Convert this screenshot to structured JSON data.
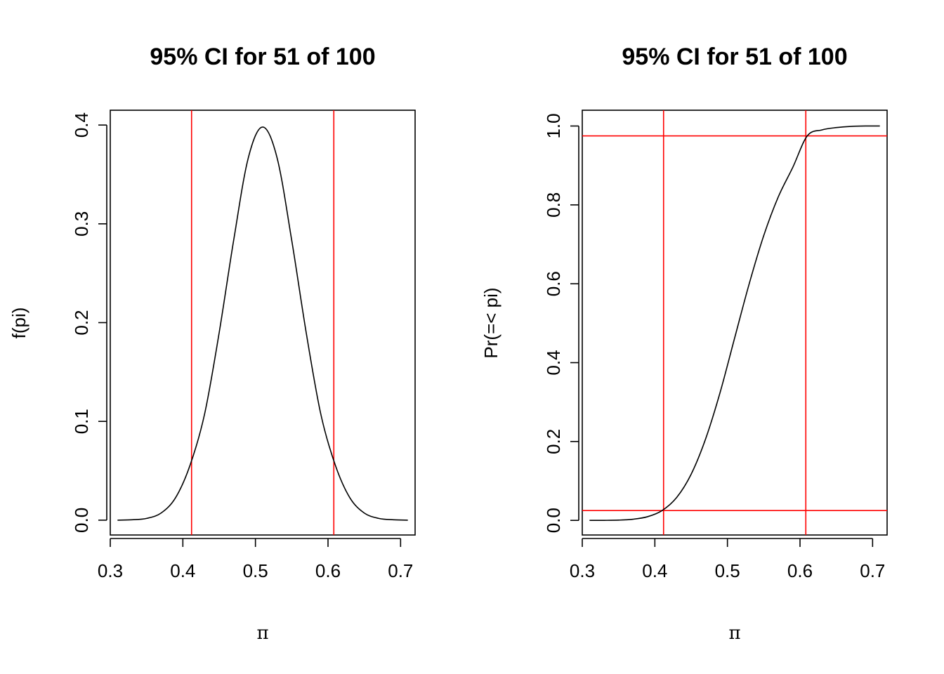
{
  "chart_data": [
    {
      "type": "line",
      "title": "95% CI for 51 of 100",
      "xlabel": "π",
      "ylabel": "f(pi)",
      "xlim": [
        0.3,
        0.72
      ],
      "ylim": [
        -0.015,
        0.415
      ],
      "xticks": [
        "0.3",
        "0.4",
        "0.5",
        "0.6",
        "0.7"
      ],
      "yticks": [
        "0.0",
        "0.1",
        "0.2",
        "0.3",
        "0.4"
      ],
      "series": [
        {
          "x": [
            0.31,
            0.33,
            0.35,
            0.37,
            0.39,
            0.41,
            0.43,
            0.45,
            0.47,
            0.49,
            0.51,
            0.53,
            0.55,
            0.57,
            0.59,
            0.61,
            0.63,
            0.65,
            0.67,
            0.69,
            0.71
          ],
          "y": [
            0.0,
            0.0004,
            0.0018,
            0.0072,
            0.0228,
            0.0558,
            0.1076,
            0.1896,
            0.2833,
            0.3663,
            0.398,
            0.3663,
            0.2833,
            0.1896,
            0.1076,
            0.0558,
            0.0228,
            0.0072,
            0.0018,
            0.0004,
            0.0
          ]
        }
      ],
      "vlines": [
        0.412,
        0.608
      ],
      "hlines": [],
      "line_color": "#000000",
      "ref_color": "#ff0000",
      "grid": false
    },
    {
      "type": "line",
      "title": "95% CI for 51 of 100",
      "xlabel": "π",
      "ylabel": "Pr(=< pi)",
      "xlim": [
        0.3,
        0.72
      ],
      "ylim": [
        -0.037,
        1.04
      ],
      "xticks": [
        "0.3",
        "0.4",
        "0.5",
        "0.6",
        "0.7"
      ],
      "yticks": [
        "0.0",
        "0.2",
        "0.4",
        "0.6",
        "0.8",
        "1.0"
      ],
      "series": [
        {
          "x": [
            0.31,
            0.33,
            0.35,
            0.37,
            0.39,
            0.41,
            0.43,
            0.45,
            0.47,
            0.49,
            0.51,
            0.53,
            0.55,
            0.57,
            0.59,
            0.61,
            0.63,
            0.65,
            0.67,
            0.69,
            0.71
          ],
          "y": [
            0.0,
            0.0001,
            0.0007,
            0.003,
            0.0094,
            0.025,
            0.058,
            0.117,
            0.207,
            0.325,
            0.463,
            0.6,
            0.722,
            0.82,
            0.895,
            0.975,
            0.99,
            0.996,
            0.999,
            1.0,
            1.0
          ]
        }
      ],
      "vlines": [
        0.412,
        0.608
      ],
      "hlines": [
        0.025,
        0.975
      ],
      "line_color": "#000000",
      "ref_color": "#ff0000",
      "grid": false
    }
  ]
}
